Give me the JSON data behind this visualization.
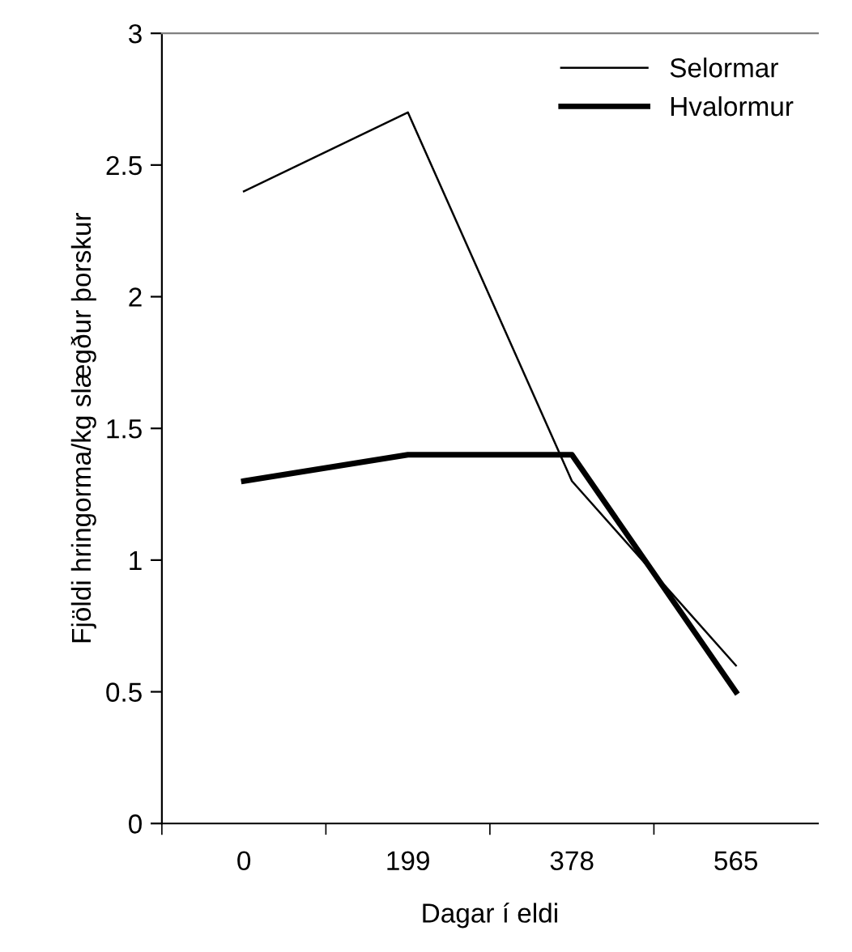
{
  "chart_data": {
    "type": "line",
    "xlabel": "Dagar í eldi",
    "ylabel": "Fjöldi hringorma/kg slægður þorskur",
    "categories": [
      "0",
      "199",
      "378",
      "565"
    ],
    "series": [
      {
        "name": "Selormar",
        "color": "#000000",
        "values": [
          2.4,
          2.7,
          1.3,
          0.6
        ]
      },
      {
        "name": "Hvalormur",
        "color": "#000000",
        "values": [
          1.3,
          1.4,
          1.4,
          0.5
        ]
      }
    ],
    "ylim": [
      0,
      3
    ],
    "yticks": [
      0,
      0.5,
      1,
      1.5,
      2,
      2.5,
      3
    ],
    "grid": false,
    "legend": "top right",
    "marker": "none",
    "line_style": "solid"
  }
}
